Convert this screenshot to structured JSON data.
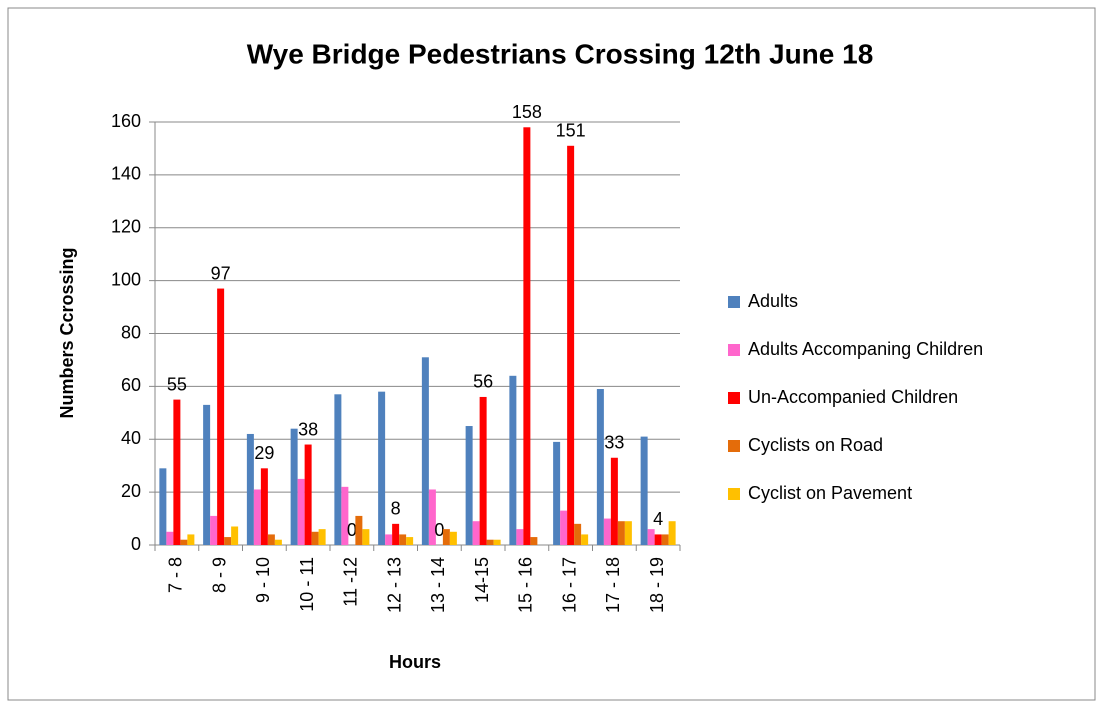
{
  "chart_data": {
    "type": "bar",
    "title": "Wye Bridge Pedestrians Crossing 12th June 18",
    "x_label": "Hours",
    "y_label": "Numbers Ccrossing",
    "categories": [
      "7 - 8",
      "8 - 9",
      "9 - 10",
      "10 - 11",
      "11 -12",
      "12 - 13",
      "13 - 14",
      "14-15",
      "15 - 16",
      "16 - 17",
      "17 - 18",
      "18 - 19"
    ],
    "series": [
      {
        "name": "Adults",
        "color": "#4f81bd",
        "values": [
          29,
          53,
          42,
          44,
          57,
          58,
          71,
          45,
          64,
          39,
          59,
          41
        ]
      },
      {
        "name": "Adults Accompaning Children",
        "color": "#ff66cc",
        "values": [
          5,
          11,
          21,
          25,
          22,
          4,
          21,
          9,
          6,
          13,
          10,
          6
        ]
      },
      {
        "name": "Un-Accompanied  Children",
        "color": "#ff0000",
        "values": [
          55,
          97,
          29,
          38,
          0,
          8,
          0,
          56,
          158,
          151,
          33,
          4
        ],
        "data_labels": true
      },
      {
        "name": "Cyclists on Road",
        "color": "#e46c0a",
        "values": [
          2,
          3,
          4,
          5,
          11,
          4,
          6,
          2,
          3,
          8,
          9,
          4
        ]
      },
      {
        "name": "Cyclist on Pavement",
        "color": "#ffc000",
        "values": [
          4,
          7,
          2,
          6,
          6,
          3,
          5,
          2,
          0,
          4,
          9,
          9
        ]
      }
    ],
    "ylim": [
      0,
      160
    ],
    "yticks": [
      0,
      20,
      40,
      60,
      80,
      100,
      120,
      140,
      160
    ],
    "grid": true,
    "legend": "right"
  }
}
